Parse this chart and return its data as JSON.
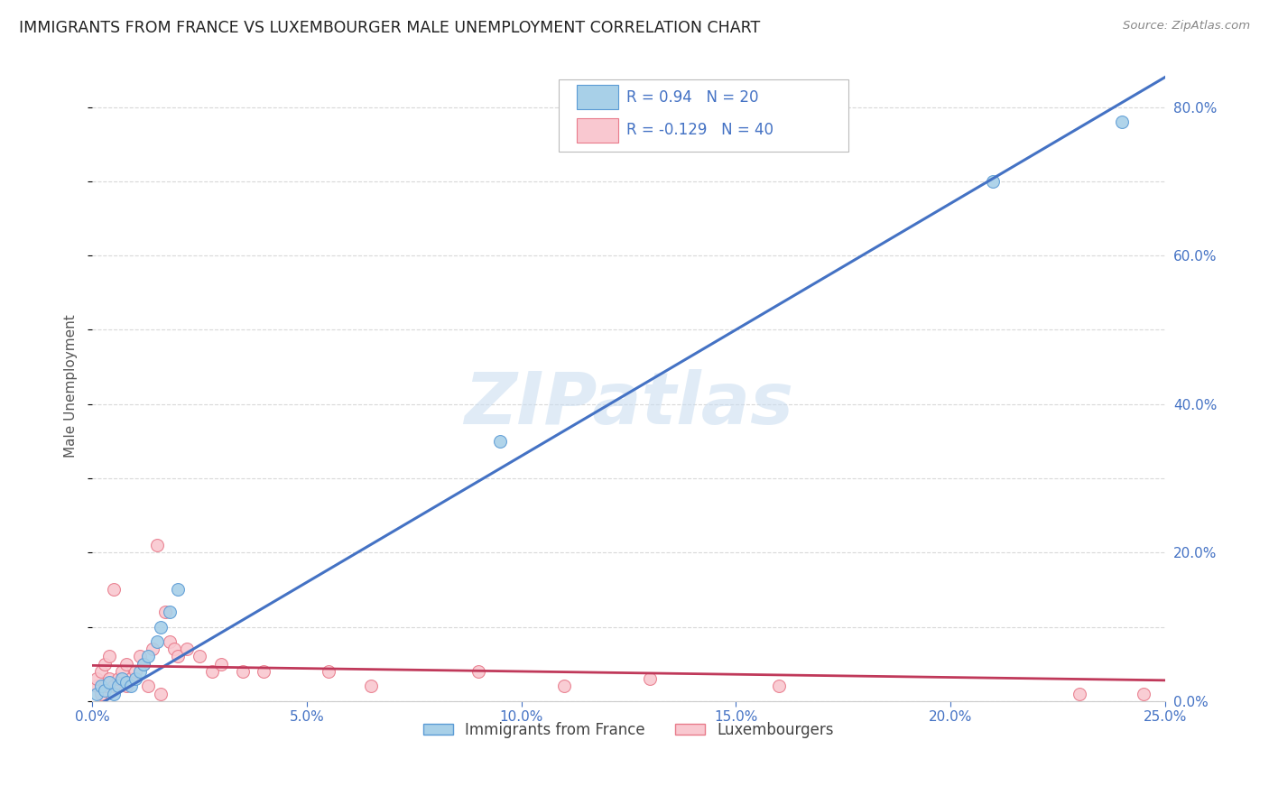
{
  "title": "IMMIGRANTS FROM FRANCE VS LUXEMBOURGER MALE UNEMPLOYMENT CORRELATION CHART",
  "source": "Source: ZipAtlas.com",
  "ylabel": "Male Unemployment",
  "x_min": 0.0,
  "x_max": 0.25,
  "y_min": 0.0,
  "y_max": 0.85,
  "x_ticks": [
    0.0,
    0.05,
    0.1,
    0.15,
    0.2,
    0.25
  ],
  "x_tick_labels": [
    "0.0%",
    "5.0%",
    "10.0%",
    "15.0%",
    "20.0%",
    "25.0%"
  ],
  "y_ticks_right": [
    0.0,
    0.2,
    0.4,
    0.6,
    0.8
  ],
  "y_tick_labels_right": [
    "0.0%",
    "20.0%",
    "40.0%",
    "60.0%",
    "80.0%"
  ],
  "blue_scatter_x": [
    0.001,
    0.002,
    0.003,
    0.004,
    0.005,
    0.006,
    0.007,
    0.008,
    0.009,
    0.01,
    0.011,
    0.012,
    0.013,
    0.015,
    0.016,
    0.018,
    0.02,
    0.095,
    0.21,
    0.24
  ],
  "blue_scatter_y": [
    0.01,
    0.02,
    0.015,
    0.025,
    0.01,
    0.02,
    0.03,
    0.025,
    0.02,
    0.03,
    0.04,
    0.05,
    0.06,
    0.08,
    0.1,
    0.12,
    0.15,
    0.35,
    0.7,
    0.78
  ],
  "pink_scatter_x": [
    0.001,
    0.001,
    0.002,
    0.002,
    0.003,
    0.003,
    0.004,
    0.004,
    0.005,
    0.005,
    0.006,
    0.007,
    0.008,
    0.008,
    0.009,
    0.01,
    0.011,
    0.012,
    0.013,
    0.014,
    0.015,
    0.016,
    0.017,
    0.018,
    0.019,
    0.02,
    0.022,
    0.025,
    0.028,
    0.03,
    0.035,
    0.04,
    0.055,
    0.065,
    0.09,
    0.11,
    0.13,
    0.16,
    0.23,
    0.245
  ],
  "pink_scatter_y": [
    0.02,
    0.03,
    0.01,
    0.04,
    0.02,
    0.05,
    0.03,
    0.06,
    0.15,
    0.02,
    0.03,
    0.04,
    0.02,
    0.05,
    0.03,
    0.04,
    0.06,
    0.05,
    0.02,
    0.07,
    0.21,
    0.01,
    0.12,
    0.08,
    0.07,
    0.06,
    0.07,
    0.06,
    0.04,
    0.05,
    0.04,
    0.04,
    0.04,
    0.02,
    0.04,
    0.02,
    0.03,
    0.02,
    0.01,
    0.01
  ],
  "blue_color": "#A8D0E8",
  "blue_edge_color": "#5B9BD5",
  "pink_color": "#F9C8D0",
  "pink_edge_color": "#E87B8B",
  "blue_line_color": "#4472C4",
  "pink_line_color": "#C0395A",
  "blue_R": 0.94,
  "blue_N": 20,
  "pink_R": -0.129,
  "pink_N": 40,
  "legend_label_blue": "Immigrants from France",
  "legend_label_pink": "Luxembourgers",
  "watermark_text": "ZIPatlas",
  "background_color": "#ffffff",
  "grid_color": "#d0d0d0",
  "title_color": "#222222",
  "axis_label_color": "#4472C4",
  "marker_size": 100,
  "blue_line_x0": 0.0,
  "blue_line_y0": -0.01,
  "blue_line_x1": 0.25,
  "blue_line_y1": 0.84,
  "pink_line_x0": 0.0,
  "pink_line_y0": 0.048,
  "pink_line_x1": 0.25,
  "pink_line_y1": 0.028
}
